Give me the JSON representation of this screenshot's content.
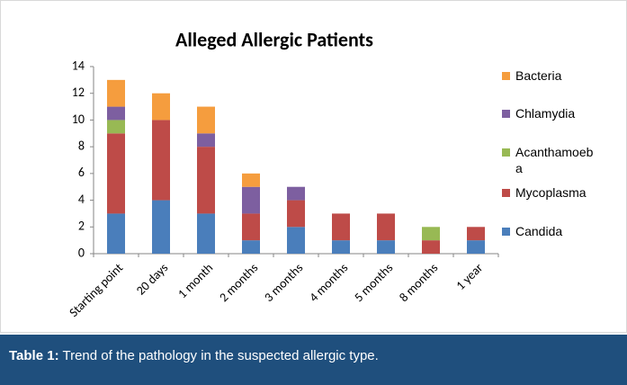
{
  "chart_data": {
    "type": "stacked_bar",
    "title": "Alleged Allergic Patients",
    "categories": [
      "Starting point",
      "20 days",
      "1 month",
      "2 months",
      "3 months",
      "4 months",
      "5 months",
      "8 months",
      "1 year"
    ],
    "series": [
      {
        "name": "Candida",
        "color": "#4a7ebb",
        "values": [
          3,
          4,
          3,
          1,
          2,
          1,
          1,
          0,
          1
        ]
      },
      {
        "name": "Mycoplasma",
        "color": "#be4b48",
        "values": [
          6,
          6,
          5,
          2,
          2,
          2,
          2,
          1,
          1
        ]
      },
      {
        "name": "Acanthamoeba",
        "color": "#98b954",
        "values": [
          1,
          0,
          0,
          0,
          0,
          0,
          0,
          1,
          0
        ]
      },
      {
        "name": "Chlamydia",
        "color": "#7d5fa0",
        "values": [
          1,
          0,
          1,
          2,
          1,
          0,
          0,
          0,
          0
        ]
      },
      {
        "name": "Bacteria",
        "color": "#f59d3e",
        "values": [
          2,
          2,
          2,
          1,
          0,
          0,
          0,
          0,
          0
        ]
      }
    ],
    "ylim": [
      0,
      14
    ],
    "yticks": [
      0,
      2,
      4,
      6,
      8,
      10,
      12,
      14
    ],
    "legend": "right"
  },
  "caption": {
    "label": "Table 1:",
    "text": "Trend of the pathology in the suspected allergic type."
  }
}
